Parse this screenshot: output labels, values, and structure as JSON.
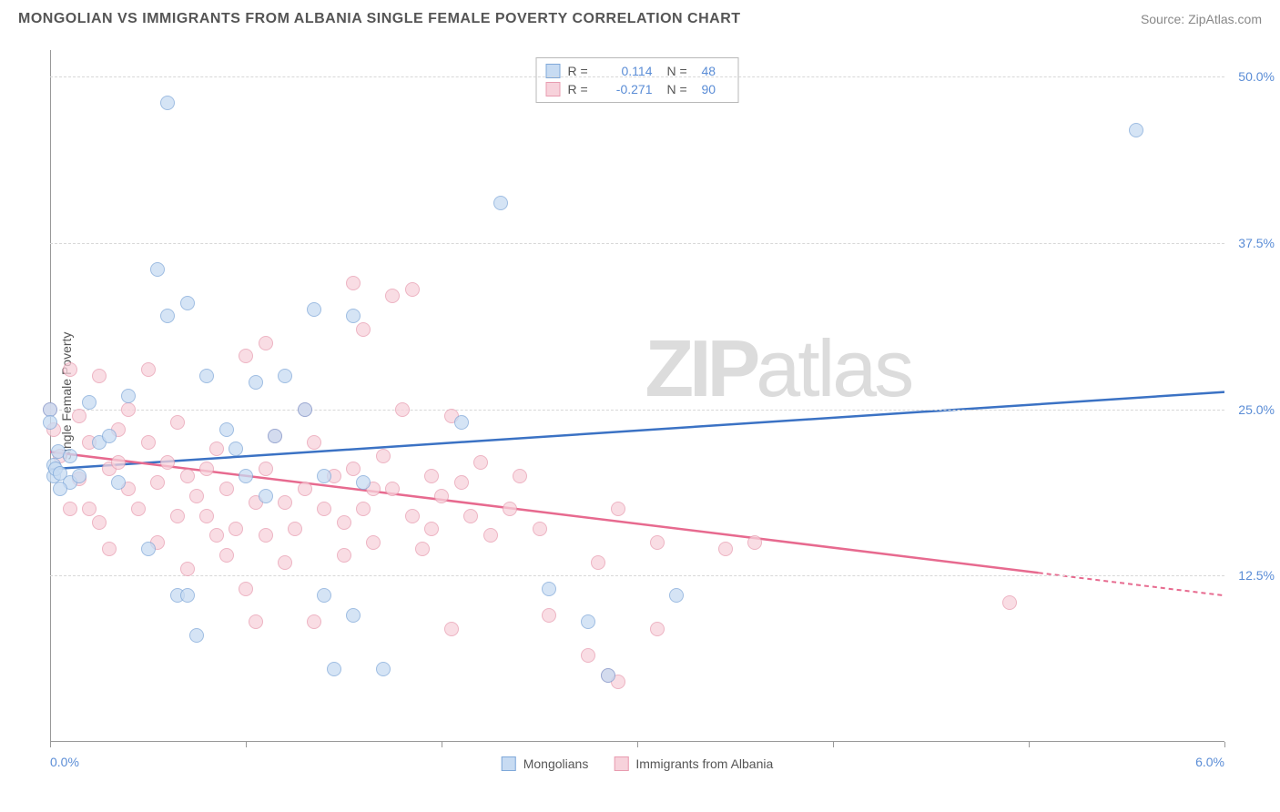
{
  "title": "MONGOLIAN VS IMMIGRANTS FROM ALBANIA SINGLE FEMALE POVERTY CORRELATION CHART",
  "source": "Source: ZipAtlas.com",
  "y_axis_label": "Single Female Poverty",
  "watermark": {
    "bold": "ZIP",
    "light": "atlas"
  },
  "chart": {
    "type": "scatter",
    "xlim": [
      0,
      6
    ],
    "ylim": [
      0,
      52
    ],
    "x_ticks": [
      0,
      1,
      2,
      3,
      4,
      5,
      6
    ],
    "x_tick_labels": {
      "0": "0.0%",
      "6": "6.0%"
    },
    "y_ticks": [
      12.5,
      25.0,
      37.5,
      50.0
    ],
    "y_tick_labels": [
      "12.5%",
      "25.0%",
      "37.5%",
      "50.0%"
    ],
    "grid_color": "#d8d8d8",
    "axis_color": "#999999",
    "background_color": "#ffffff",
    "point_radius": 8,
    "point_opacity": 0.75,
    "series": [
      {
        "name": "Mongolians",
        "color_fill": "#c7dbf2",
        "color_stroke": "#7fa8d9",
        "trend_color": "#3b72c4",
        "r_value": "0.114",
        "n_value": "48",
        "trend": {
          "x1": 0,
          "y1": 20.5,
          "x2": 6.0,
          "y2": 26.3,
          "dash_from_x": null
        },
        "points": [
          [
            0.0,
            25.0
          ],
          [
            0.0,
            24.0
          ],
          [
            0.02,
            20.8
          ],
          [
            0.02,
            20.0
          ],
          [
            0.03,
            20.5
          ],
          [
            0.04,
            21.8
          ],
          [
            0.05,
            20.2
          ],
          [
            0.1,
            19.5
          ],
          [
            0.1,
            21.5
          ],
          [
            0.15,
            20.0
          ],
          [
            0.2,
            25.5
          ],
          [
            0.25,
            22.5
          ],
          [
            0.3,
            23.0
          ],
          [
            0.35,
            19.5
          ],
          [
            0.4,
            26.0
          ],
          [
            0.6,
            48.0
          ],
          [
            0.55,
            35.5
          ],
          [
            0.6,
            32.0
          ],
          [
            0.5,
            14.5
          ],
          [
            0.65,
            11.0
          ],
          [
            0.7,
            33.0
          ],
          [
            0.7,
            11.0
          ],
          [
            0.75,
            8.0
          ],
          [
            0.8,
            27.5
          ],
          [
            0.9,
            23.5
          ],
          [
            0.95,
            22.0
          ],
          [
            1.0,
            20.0
          ],
          [
            1.05,
            27.0
          ],
          [
            1.1,
            18.5
          ],
          [
            1.15,
            23.0
          ],
          [
            1.2,
            27.5
          ],
          [
            1.3,
            25.0
          ],
          [
            1.35,
            32.5
          ],
          [
            1.4,
            20.0
          ],
          [
            1.4,
            11.0
          ],
          [
            1.45,
            5.5
          ],
          [
            1.55,
            9.5
          ],
          [
            1.55,
            32.0
          ],
          [
            1.6,
            19.5
          ],
          [
            1.7,
            5.5
          ],
          [
            2.1,
            24.0
          ],
          [
            2.3,
            40.5
          ],
          [
            2.55,
            11.5
          ],
          [
            2.75,
            9.0
          ],
          [
            2.85,
            5.0
          ],
          [
            3.2,
            11.0
          ],
          [
            5.55,
            46.0
          ],
          [
            0.05,
            19.0
          ]
        ]
      },
      {
        "name": "Immigrants from Albania",
        "color_fill": "#f7d2db",
        "color_stroke": "#e89cb0",
        "trend_color": "#e76a8f",
        "r_value": "-0.271",
        "n_value": "90",
        "trend": {
          "x1": 0,
          "y1": 21.8,
          "x2": 6.0,
          "y2": 11.0,
          "dash_from_x": 5.05
        },
        "points": [
          [
            0.0,
            25.0
          ],
          [
            0.02,
            23.5
          ],
          [
            0.05,
            21.5
          ],
          [
            0.1,
            28.0
          ],
          [
            0.1,
            17.5
          ],
          [
            0.15,
            24.5
          ],
          [
            0.15,
            19.8
          ],
          [
            0.2,
            22.5
          ],
          [
            0.2,
            17.5
          ],
          [
            0.25,
            16.5
          ],
          [
            0.25,
            27.5
          ],
          [
            0.3,
            20.5
          ],
          [
            0.3,
            14.5
          ],
          [
            0.35,
            21.0
          ],
          [
            0.35,
            23.5
          ],
          [
            0.4,
            19.0
          ],
          [
            0.4,
            25.0
          ],
          [
            0.45,
            17.5
          ],
          [
            0.5,
            22.5
          ],
          [
            0.5,
            28.0
          ],
          [
            0.55,
            19.5
          ],
          [
            0.55,
            15.0
          ],
          [
            0.6,
            21.0
          ],
          [
            0.65,
            17.0
          ],
          [
            0.65,
            24.0
          ],
          [
            0.7,
            20.0
          ],
          [
            0.7,
            13.0
          ],
          [
            0.75,
            18.5
          ],
          [
            0.8,
            20.5
          ],
          [
            0.8,
            17.0
          ],
          [
            0.85,
            15.5
          ],
          [
            0.85,
            22.0
          ],
          [
            0.9,
            19.0
          ],
          [
            0.9,
            14.0
          ],
          [
            0.95,
            16.0
          ],
          [
            1.0,
            11.5
          ],
          [
            1.0,
            29.0
          ],
          [
            1.05,
            9.0
          ],
          [
            1.05,
            18.0
          ],
          [
            1.1,
            15.5
          ],
          [
            1.1,
            20.5
          ],
          [
            1.1,
            30.0
          ],
          [
            1.15,
            23.0
          ],
          [
            1.2,
            13.5
          ],
          [
            1.2,
            18.0
          ],
          [
            1.25,
            16.0
          ],
          [
            1.3,
            25.0
          ],
          [
            1.3,
            19.0
          ],
          [
            1.35,
            9.0
          ],
          [
            1.35,
            22.5
          ],
          [
            1.4,
            17.5
          ],
          [
            1.45,
            20.0
          ],
          [
            1.5,
            14.0
          ],
          [
            1.5,
            16.5
          ],
          [
            1.55,
            34.5
          ],
          [
            1.55,
            20.5
          ],
          [
            1.6,
            31.0
          ],
          [
            1.6,
            17.5
          ],
          [
            1.65,
            19.0
          ],
          [
            1.65,
            15.0
          ],
          [
            1.7,
            21.5
          ],
          [
            1.75,
            33.5
          ],
          [
            1.75,
            19.0
          ],
          [
            1.8,
            25.0
          ],
          [
            1.85,
            34.0
          ],
          [
            1.85,
            17.0
          ],
          [
            1.9,
            14.5
          ],
          [
            1.95,
            20.0
          ],
          [
            1.95,
            16.0
          ],
          [
            2.0,
            18.5
          ],
          [
            2.05,
            24.5
          ],
          [
            2.05,
            8.5
          ],
          [
            2.1,
            19.5
          ],
          [
            2.15,
            17.0
          ],
          [
            2.2,
            21.0
          ],
          [
            2.25,
            15.5
          ],
          [
            2.35,
            17.5
          ],
          [
            2.4,
            20.0
          ],
          [
            2.5,
            16.0
          ],
          [
            2.55,
            9.5
          ],
          [
            2.75,
            6.5
          ],
          [
            2.8,
            13.5
          ],
          [
            2.85,
            5.0
          ],
          [
            2.9,
            17.5
          ],
          [
            2.9,
            4.5
          ],
          [
            3.1,
            15.0
          ],
          [
            3.1,
            8.5
          ],
          [
            3.45,
            14.5
          ],
          [
            3.6,
            15.0
          ],
          [
            4.9,
            10.5
          ]
        ]
      }
    ]
  },
  "legend_top": {
    "r_label": "R =",
    "n_label": "N ="
  },
  "legend_bottom": {
    "items": [
      "Mongolians",
      "Immigrants from Albania"
    ]
  },
  "colors": {
    "title": "#555555",
    "source": "#888888",
    "tick_label": "#5b8dd6",
    "watermark": "#dcdcdc"
  }
}
